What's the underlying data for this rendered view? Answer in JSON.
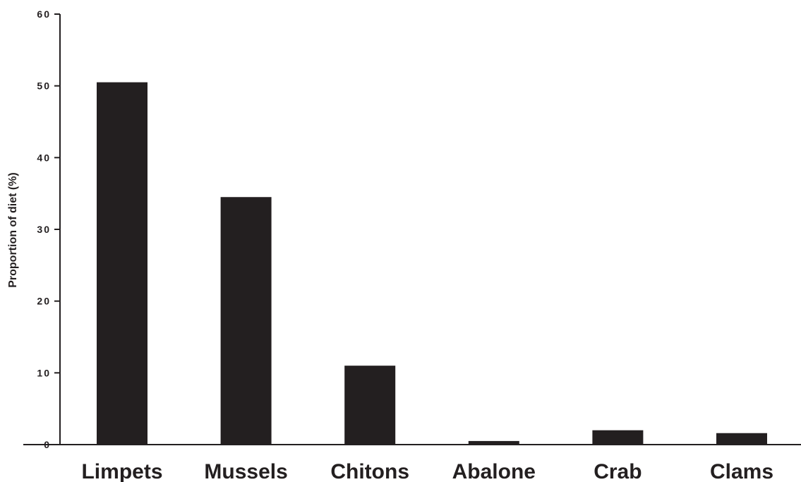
{
  "chart_data": {
    "type": "bar",
    "categories": [
      "Limpets",
      "Mussels",
      "Chitons",
      "Abalone",
      "Crab",
      "Clams"
    ],
    "values": [
      50.5,
      34.5,
      11.0,
      0.5,
      2.0,
      1.6
    ],
    "title": "",
    "xlabel": "",
    "ylabel": "Proportion of diet (%)",
    "ylim": [
      0,
      60
    ],
    "yticks": [
      0,
      10,
      20,
      30,
      40,
      50,
      60
    ],
    "grid": false,
    "legend": "none",
    "bar_color": "#231f20"
  }
}
